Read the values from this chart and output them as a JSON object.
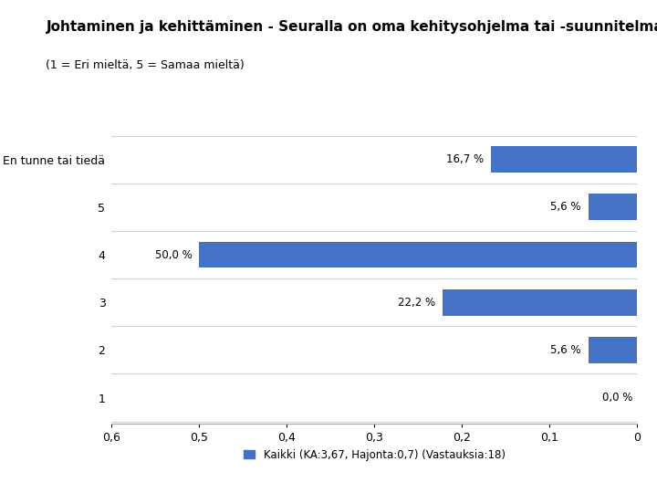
{
  "title": "Johtaminen ja kehittäminen - Seuralla on oma kehitysohjelma tai -suunnitelma",
  "subtitle": "(1 = Eri mieltä, 5 = Samaa mieltä)",
  "categories": [
    "1",
    "2",
    "3",
    "4",
    "5",
    "En tunne tai tiedä"
  ],
  "values": [
    0.0,
    0.056,
    0.222,
    0.5,
    0.056,
    0.167
  ],
  "labels": [
    "0,0 %",
    "5,6 %",
    "22,2 %",
    "50,0 %",
    "5,6 %",
    "16,7 %"
  ],
  "bar_color": "#4472C4",
  "background_color": "#ffffff",
  "xlim_min": 0.0,
  "xlim_max": 0.6,
  "xticks": [
    0.6,
    0.5,
    0.4,
    0.3,
    0.2,
    0.1,
    0.0
  ],
  "xtick_labels": [
    "0,6",
    "0,5",
    "0,4",
    "0,3",
    "0,2",
    "0,1",
    "0"
  ],
  "legend_label": "Kaikki (KA:3,67, Hajonta:0,7) (Vastauksia:18)",
  "title_fontsize": 11,
  "subtitle_fontsize": 9,
  "label_fontsize": 8.5,
  "tick_fontsize": 9,
  "legend_fontsize": 8.5
}
